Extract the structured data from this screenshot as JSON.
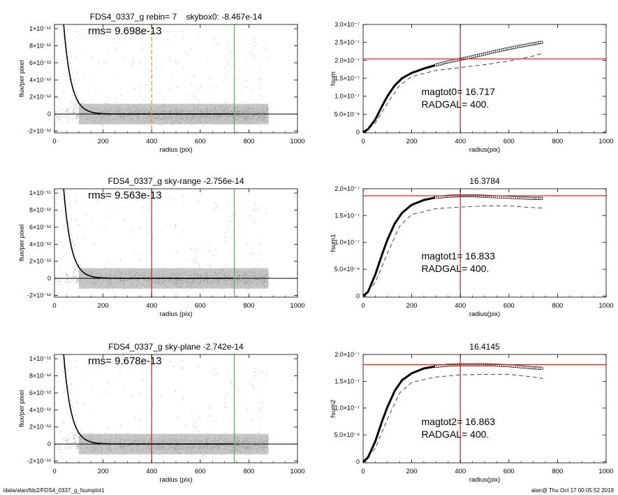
{
  "footer": {
    "path": "/data/alan/fds2/FDS4_0337_g_fsumplot1",
    "user_time": "alan@  Thu Oct 17 00:05:52 2019"
  },
  "colors": {
    "points": "#999999",
    "profile": "#000000",
    "red": "#dd2222",
    "green": "#33cc33",
    "orange": "#ee9922",
    "dashed": "#333333"
  },
  "chart_data": [
    {
      "type": "scatter",
      "title": "FDS4_0337_g rebin= 7    skybox0: -8.467e-14",
      "annotation": "rms= 9.698e-13",
      "xlabel": "radius (pix)",
      "ylabel": "flux/per pixel",
      "xlim": [
        0,
        1000
      ],
      "ylim": [
        -2.2e-12,
        1.05e-11
      ],
      "x_ticks": [
        "0",
        "200",
        "400",
        "600",
        "800",
        "1000"
      ],
      "y_ticks": [
        {
          "v": 1e-11,
          "label": "1×10⁻¹¹"
        },
        {
          "v": 8e-12,
          "label": "8×10⁻¹²"
        },
        {
          "v": 6e-12,
          "label": "6×10⁻¹²"
        },
        {
          "v": 4e-12,
          "label": "4×10⁻¹²"
        },
        {
          "v": 2e-12,
          "label": "2×10⁻¹²"
        },
        {
          "v": 0,
          "label": "0"
        },
        {
          "v": -2e-12,
          "label": "-2×10⁻¹²"
        }
      ],
      "profile_r0": 34,
      "profile_amp": 1.2e-11,
      "profile_scale": 30,
      "vlines": [
        {
          "x": 400,
          "color": "orange",
          "dash": true
        },
        {
          "x": 740,
          "color": "green",
          "dash": false
        }
      ]
    },
    {
      "type": "line",
      "title": "",
      "xlabel": "radius(pix)",
      "ylabel": "fsum",
      "xlim": [
        0,
        1000
      ],
      "ylim": [
        -2e-09,
        3e-07
      ],
      "x_ticks": [
        "0",
        "200",
        "400",
        "600",
        "800",
        "1000"
      ],
      "y_ticks": [
        {
          "v": 3e-07,
          "label": "3.0×10⁻⁷"
        },
        {
          "v": 2.5e-07,
          "label": "2.5×10⁻⁷"
        },
        {
          "v": 2e-07,
          "label": "2.0×10⁻⁷"
        },
        {
          "v": 1.5e-07,
          "label": "1.5×10⁻⁷"
        },
        {
          "v": 1e-07,
          "label": "1.0×10⁻⁷"
        },
        {
          "v": 5e-08,
          "label": "5.0×10⁻⁸"
        },
        {
          "v": 0,
          "label": "0"
        }
      ],
      "growth": [
        [
          0,
          0
        ],
        [
          20,
          8e-09
        ],
        [
          50,
          3.5e-08
        ],
        [
          80,
          7.5e-08
        ],
        [
          100,
          1e-07
        ],
        [
          130,
          1.3e-07
        ],
        [
          160,
          1.5e-07
        ],
        [
          200,
          1.65e-07
        ],
        [
          250,
          1.77e-07
        ],
        [
          300,
          1.87e-07
        ],
        [
          350,
          1.96e-07
        ],
        [
          400,
          2.03e-07
        ],
        [
          450,
          2.1e-07
        ],
        [
          500,
          2.18e-07
        ],
        [
          550,
          2.26e-07
        ],
        [
          600,
          2.33e-07
        ],
        [
          650,
          2.4e-07
        ],
        [
          700,
          2.46e-07
        ],
        [
          740,
          2.51e-07
        ]
      ],
      "dashed": [
        [
          0,
          0
        ],
        [
          50,
          2.5e-08
        ],
        [
          100,
          8e-08
        ],
        [
          150,
          1.3e-07
        ],
        [
          200,
          1.55e-07
        ],
        [
          300,
          1.72e-07
        ],
        [
          400,
          1.8e-07
        ],
        [
          500,
          1.88e-07
        ],
        [
          600,
          1.98e-07
        ],
        [
          700,
          2.12e-07
        ],
        [
          740,
          2.2e-07
        ]
      ],
      "vline": 400,
      "hline": 2.04e-07,
      "labels": [
        "magtot0=  16.717",
        "RADGAL=    400."
      ]
    },
    {
      "type": "scatter",
      "title": "FDS4_0337_g sky-range -2.756e-14",
      "annotation": "rms= 9.563e-13",
      "xlabel": "radius (pix)",
      "ylabel": "flux/per pixel",
      "xlim": [
        0,
        1000
      ],
      "ylim": [
        -2.2e-12,
        1.05e-11
      ],
      "x_ticks": [
        "0",
        "200",
        "400",
        "600",
        "800",
        "1000"
      ],
      "y_ticks": [
        {
          "v": 1e-11,
          "label": "1×10⁻¹¹"
        },
        {
          "v": 8e-12,
          "label": "8×10⁻¹²"
        },
        {
          "v": 6e-12,
          "label": "6×10⁻¹²"
        },
        {
          "v": 4e-12,
          "label": "4×10⁻¹²"
        },
        {
          "v": 2e-12,
          "label": "2×10⁻¹²"
        },
        {
          "v": 0,
          "label": "0"
        },
        {
          "v": -2e-12,
          "label": "-2×10⁻¹²"
        }
      ],
      "profile_r0": 34,
      "profile_amp": 1.2e-11,
      "profile_scale": 30,
      "vlines": [
        {
          "x": 400,
          "color": "red",
          "dash": false
        },
        {
          "x": 740,
          "color": "green",
          "dash": false
        }
      ]
    },
    {
      "type": "line",
      "title": "16.3784",
      "xlabel": "radius(pix)",
      "ylabel": "fsum1",
      "xlim": [
        0,
        1000
      ],
      "ylim": [
        -2e-09,
        2e-07
      ],
      "x_ticks": [
        "0",
        "200",
        "400",
        "600",
        "800",
        "1000"
      ],
      "y_ticks": [
        {
          "v": 2e-07,
          "label": "2.0×10⁻⁷"
        },
        {
          "v": 1.5e-07,
          "label": "1.5×10⁻⁷"
        },
        {
          "v": 1e-07,
          "label": "1.0×10⁻⁷"
        },
        {
          "v": 5e-08,
          "label": "5.0×10⁻⁸"
        },
        {
          "v": 0,
          "label": "0"
        }
      ],
      "growth": [
        [
          0,
          0
        ],
        [
          20,
          8e-09
        ],
        [
          50,
          4e-08
        ],
        [
          80,
          8e-08
        ],
        [
          100,
          1.05e-07
        ],
        [
          130,
          1.35e-07
        ],
        [
          160,
          1.55e-07
        ],
        [
          200,
          1.7e-07
        ],
        [
          250,
          1.79e-07
        ],
        [
          300,
          1.84e-07
        ],
        [
          350,
          1.86e-07
        ],
        [
          400,
          1.87e-07
        ],
        [
          450,
          1.87e-07
        ],
        [
          500,
          1.86e-07
        ],
        [
          550,
          1.85e-07
        ],
        [
          600,
          1.84e-07
        ],
        [
          650,
          1.83e-07
        ],
        [
          700,
          1.82e-07
        ],
        [
          740,
          1.82e-07
        ]
      ],
      "dashed": [
        [
          0,
          0
        ],
        [
          50,
          2.5e-08
        ],
        [
          100,
          8e-08
        ],
        [
          150,
          1.3e-07
        ],
        [
          200,
          1.52e-07
        ],
        [
          300,
          1.63e-07
        ],
        [
          400,
          1.66e-07
        ],
        [
          500,
          1.68e-07
        ],
        [
          600,
          1.68e-07
        ],
        [
          700,
          1.65e-07
        ],
        [
          740,
          1.64e-07
        ]
      ],
      "vline": 400,
      "hline": 1.87e-07,
      "labels": [
        "magtot1=  16.833",
        "RADGAL=    400."
      ]
    },
    {
      "type": "scatter",
      "title": "FDS4_0337_g sky-plane -2.742e-14",
      "annotation": "rms= 9.678e-13",
      "xlabel": "radius (pix)",
      "ylabel": "flux/per pixel",
      "xlim": [
        0,
        1000
      ],
      "ylim": [
        -2.2e-12,
        1.05e-11
      ],
      "x_ticks": [
        "0",
        "200",
        "400",
        "600",
        "800",
        "1000"
      ],
      "y_ticks": [
        {
          "v": 1e-11,
          "label": "1×10⁻¹¹"
        },
        {
          "v": 8e-12,
          "label": "8×10⁻¹²"
        },
        {
          "v": 6e-12,
          "label": "6×10⁻¹²"
        },
        {
          "v": 4e-12,
          "label": "4×10⁻¹²"
        },
        {
          "v": 2e-12,
          "label": "2×10⁻¹²"
        },
        {
          "v": 0,
          "label": "0"
        },
        {
          "v": -2e-12,
          "label": "-2×10⁻¹²"
        }
      ],
      "profile_r0": 34,
      "profile_amp": 1.2e-11,
      "profile_scale": 30,
      "vlines": [
        {
          "x": 400,
          "color": "red",
          "dash": false
        },
        {
          "x": 740,
          "color": "green",
          "dash": false
        }
      ]
    },
    {
      "type": "line",
      "title": "16.4145",
      "xlabel": "radius(pix)",
      "ylabel": "fsum2",
      "xlim": [
        0,
        1000
      ],
      "ylim": [
        -2e-09,
        2e-07
      ],
      "x_ticks": [
        "0",
        "200",
        "400",
        "600",
        "800",
        "1000"
      ],
      "y_ticks": [
        {
          "v": 2e-07,
          "label": "2.0×10⁻⁷"
        },
        {
          "v": 1.5e-07,
          "label": "1.5×10⁻⁷"
        },
        {
          "v": 1e-07,
          "label": "1.0×10⁻⁷"
        },
        {
          "v": 5e-08,
          "label": "5.0×10⁻⁸"
        },
        {
          "v": 0,
          "label": "0"
        }
      ],
      "growth": [
        [
          0,
          0
        ],
        [
          20,
          8e-09
        ],
        [
          50,
          3.8e-08
        ],
        [
          80,
          7.8e-08
        ],
        [
          100,
          1.02e-07
        ],
        [
          130,
          1.32e-07
        ],
        [
          160,
          1.52e-07
        ],
        [
          200,
          1.65e-07
        ],
        [
          250,
          1.74e-07
        ],
        [
          300,
          1.78e-07
        ],
        [
          350,
          1.8e-07
        ],
        [
          400,
          1.81e-07
        ],
        [
          450,
          1.81e-07
        ],
        [
          500,
          1.81e-07
        ],
        [
          550,
          1.8e-07
        ],
        [
          600,
          1.79e-07
        ],
        [
          650,
          1.77e-07
        ],
        [
          700,
          1.75e-07
        ],
        [
          740,
          1.74e-07
        ]
      ],
      "dashed": [
        [
          0,
          0
        ],
        [
          50,
          2.5e-08
        ],
        [
          100,
          8e-08
        ],
        [
          150,
          1.28e-07
        ],
        [
          200,
          1.48e-07
        ],
        [
          300,
          1.58e-07
        ],
        [
          400,
          1.62e-07
        ],
        [
          500,
          1.63e-07
        ],
        [
          600,
          1.63e-07
        ],
        [
          700,
          1.58e-07
        ],
        [
          740,
          1.55e-07
        ]
      ],
      "vline": 400,
      "hline": 1.81e-07,
      "labels": [
        "magtot2=  16.863",
        "RADGAL=    400."
      ]
    }
  ]
}
